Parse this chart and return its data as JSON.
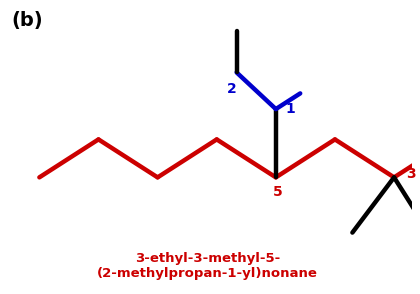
{
  "title_label": "(b)",
  "compound_name_line1": "3-ethyl-3-methyl-5-",
  "compound_name_line2": "(2-methylpropan-1-yl)nonane",
  "label_color": "#cc0000",
  "title_color": "#000000",
  "blue_color": "#0000cc",
  "red_color": "#cc0000",
  "black_color": "#000000",
  "bg_color": "#ffffff",
  "lw": 3.2
}
